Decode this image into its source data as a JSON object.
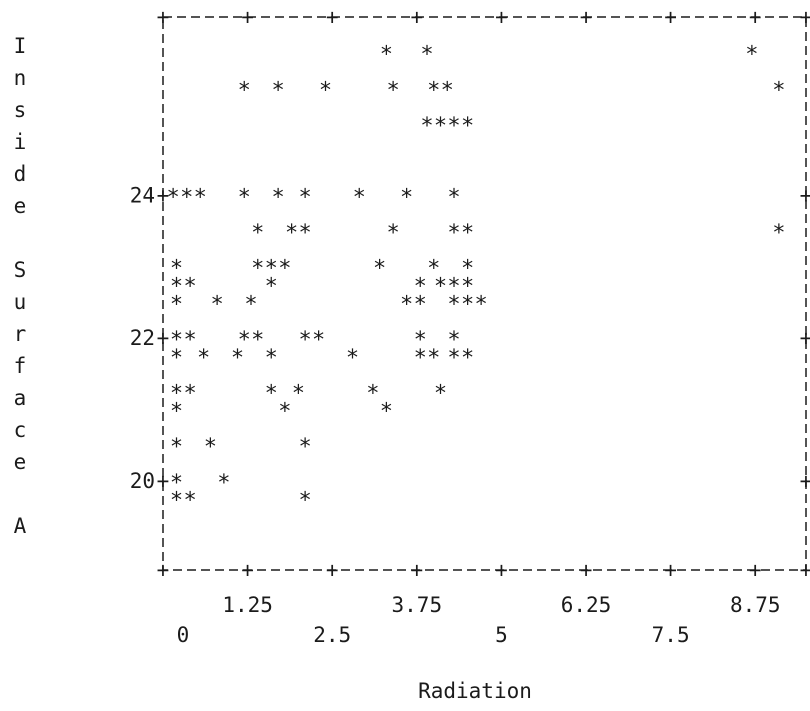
{
  "chart_data": {
    "type": "scatter",
    "style": "line-printer ascii scatter",
    "marker": "*",
    "title": "",
    "xlabel": "Radiation",
    "ylabel": "Inside Surface A",
    "ylabel_letters": [
      "I",
      "n",
      "s",
      "i",
      "d",
      "e",
      "",
      "S",
      "u",
      "r",
      "f",
      "a",
      "c",
      "e",
      "",
      "A"
    ],
    "xlim": [
      0,
      9.5
    ],
    "ylim": [
      18.75,
      26.5
    ],
    "x_ticks_row1": [
      "1.25",
      "3.75",
      "6.25",
      "8.75"
    ],
    "x_ticks_row2": [
      "0",
      "2.5",
      "5",
      "7.5"
    ],
    "x_tick_values_row1": [
      1.25,
      3.75,
      6.25,
      8.75
    ],
    "x_tick_values_row2": [
      0,
      2.5,
      5,
      7.5
    ],
    "y_ticks": [
      "24",
      "22",
      "20"
    ],
    "y_tick_values": [
      24,
      22,
      20
    ],
    "grid": false,
    "legend": "none",
    "rows": [
      {
        "y": 26.0,
        "x": [
          3.3,
          3.9,
          8.7
        ]
      },
      {
        "y": 25.5,
        "x": [
          1.2,
          1.7,
          2.4,
          3.4,
          4.0,
          4.2,
          9.1
        ]
      },
      {
        "y": 25.0,
        "x": [
          3.9,
          4.1,
          4.3,
          4.5
        ]
      },
      {
        "y": 24.0,
        "x": [
          0.15,
          0.35,
          0.55,
          1.2,
          1.7,
          2.1,
          2.9,
          3.6,
          4.3
        ]
      },
      {
        "y": 23.5,
        "x": [
          1.4,
          1.9,
          2.1,
          3.4,
          4.3,
          4.5,
          9.1
        ]
      },
      {
        "y": 23.0,
        "x": [
          0.2,
          1.4,
          1.6,
          1.8,
          3.2,
          4.0,
          4.5
        ]
      },
      {
        "y": 22.75,
        "x": [
          0.2,
          0.4,
          1.6,
          3.8,
          4.1,
          4.3,
          4.5
        ]
      },
      {
        "y": 22.5,
        "x": [
          0.2,
          0.8,
          1.3,
          3.6,
          3.8,
          4.3,
          4.5,
          4.7
        ]
      },
      {
        "y": 22.0,
        "x": [
          0.2,
          0.4,
          1.2,
          1.4,
          2.1,
          2.3,
          3.8,
          4.3
        ]
      },
      {
        "y": 21.75,
        "x": [
          0.2,
          0.6,
          1.1,
          1.6,
          2.8,
          3.8,
          4.0,
          4.3,
          4.5
        ]
      },
      {
        "y": 21.25,
        "x": [
          0.2,
          0.4,
          1.6,
          2.0,
          3.1,
          4.1
        ]
      },
      {
        "y": 21.0,
        "x": [
          0.2,
          1.8,
          3.3
        ]
      },
      {
        "y": 20.5,
        "x": [
          0.2,
          0.7,
          2.1
        ]
      },
      {
        "y": 20.0,
        "x": [
          0.2,
          0.9
        ]
      },
      {
        "y": 19.75,
        "x": [
          0.2,
          0.4,
          2.1
        ]
      }
    ]
  }
}
